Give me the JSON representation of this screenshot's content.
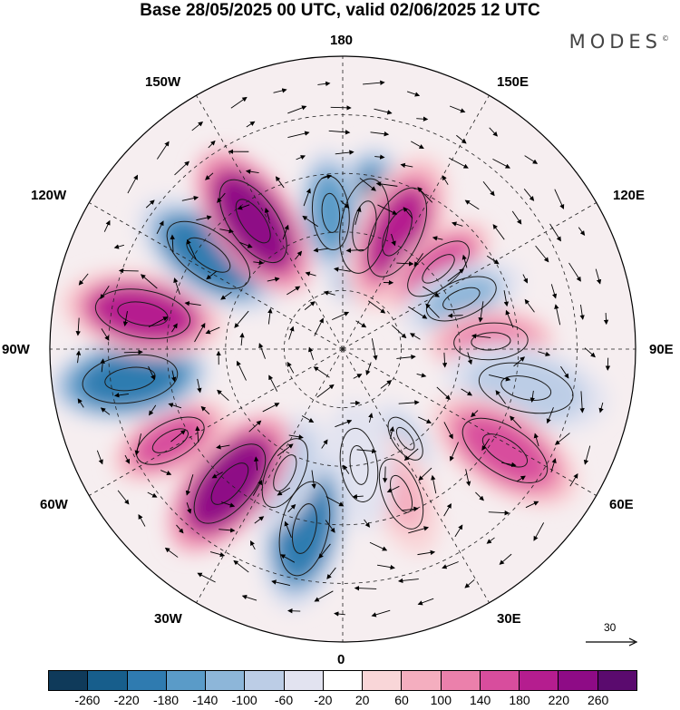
{
  "title": "Base 28/05/2025 00 UTC, valid 02/06/2025 12 UTC",
  "logo": "MODES",
  "logo_mark": "©",
  "longitude_labels": {
    "top": "180",
    "bottom": "0",
    "left": "90W",
    "right": "90E",
    "upper_left_1": "150W",
    "upper_left_2": "120W",
    "upper_right_1": "150E",
    "upper_right_2": "120E",
    "lower_left_1": "60W",
    "lower_left_2": "30W",
    "lower_right_1": "60E",
    "lower_right_2": "30E"
  },
  "reference_vector": {
    "value": "30"
  },
  "colorbar": {
    "colors": [
      "#0f3a5a",
      "#175e8c",
      "#2f7bb0",
      "#5a9bc8",
      "#8db6d9",
      "#bccde6",
      "#e2e3f0",
      "#ffffff",
      "#f9d6d8",
      "#f4aebf",
      "#eb80ab",
      "#d84d9d",
      "#b51d8f",
      "#8e0b86",
      "#5a0a6e"
    ],
    "ticks": [
      "-260",
      "-220",
      "-180",
      "-140",
      "-100",
      "-60",
      "-20",
      "20",
      "60",
      "100",
      "140",
      "180",
      "220",
      "260"
    ]
  },
  "anomaly_centers": [
    {
      "lon": 170,
      "lat": 58,
      "value": -230,
      "size": "large"
    },
    {
      "lon": -175,
      "lat": 55,
      "value": -170,
      "size": "medium"
    },
    {
      "lon": 155,
      "lat": 57,
      "value": 180,
      "size": "large"
    },
    {
      "lon": 130,
      "lat": 58,
      "value": 150,
      "size": "medium"
    },
    {
      "lon": 113,
      "lat": 57,
      "value": -120,
      "size": "medium"
    },
    {
      "lon": 93,
      "lat": 52,
      "value": 120,
      "size": "medium"
    },
    {
      "lon": 78,
      "lat": 42,
      "value": -90,
      "size": "large"
    },
    {
      "lon": 58,
      "lat": 41,
      "value": 170,
      "size": "large"
    },
    {
      "lon": 35,
      "lat": 62,
      "value": -80,
      "size": "small"
    },
    {
      "lon": 22,
      "lat": 50,
      "value": 70,
      "size": "medium"
    },
    {
      "lon": 8,
      "lat": 60,
      "value": -60,
      "size": "medium"
    },
    {
      "lon": -12,
      "lat": 43,
      "value": -190,
      "size": "large"
    },
    {
      "lon": -25,
      "lat": 55,
      "value": -90,
      "size": "medium"
    },
    {
      "lon": -40,
      "lat": 45,
      "value": 240,
      "size": "large"
    },
    {
      "lon": -62,
      "lat": 40,
      "value": 140,
      "size": "medium"
    },
    {
      "lon": -82,
      "lat": 35,
      "value": -220,
      "size": "large"
    },
    {
      "lon": -100,
      "lat": 38,
      "value": 190,
      "size": "large"
    },
    {
      "lon": -125,
      "lat": 48,
      "value": -200,
      "size": "large"
    },
    {
      "lon": -145,
      "lat": 50,
      "value": 240,
      "size": "large"
    }
  ]
}
